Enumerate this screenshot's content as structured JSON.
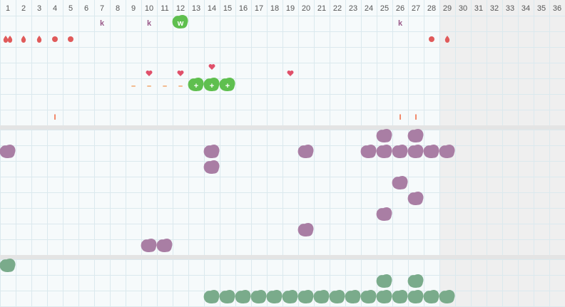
{
  "days": [
    1,
    2,
    3,
    4,
    5,
    6,
    7,
    8,
    9,
    10,
    11,
    12,
    13,
    14,
    15,
    16,
    17,
    18,
    19,
    20,
    21,
    22,
    23,
    24,
    25,
    26,
    27,
    28,
    29,
    30,
    31,
    32,
    33,
    34,
    35,
    36
  ],
  "shaded_from_day": 29,
  "top": {
    "k_marks": {
      "label": "k",
      "days": [
        7,
        10,
        26
      ]
    },
    "w_marks": {
      "label": "w",
      "days": [
        12
      ]
    },
    "double_drops": [
      1
    ],
    "drops": [
      2,
      3,
      29
    ],
    "dots": [
      4,
      5,
      28
    ],
    "hearts_high": [
      14
    ],
    "hearts": [
      10,
      12,
      19
    ],
    "dash_marks": {
      "label": "–",
      "days": [
        9,
        10,
        11,
        12
      ]
    },
    "plus_marks": {
      "label": "+",
      "days": [
        13,
        14,
        15
      ]
    },
    "i_marks": {
      "label": "I",
      "days": [
        4,
        26,
        27
      ]
    }
  },
  "middle": {
    "rows": [
      [
        25,
        27
      ],
      [
        1,
        14,
        20,
        24,
        25,
        26,
        27,
        28,
        29
      ],
      [
        14
      ],
      [
        26
      ],
      [
        27
      ],
      [
        25
      ],
      [
        20
      ],
      [
        10,
        11
      ]
    ]
  },
  "bottom": {
    "rows": [
      [
        1
      ],
      [
        25,
        27
      ],
      [
        14,
        15,
        16,
        17,
        18,
        19,
        20,
        21,
        22,
        23,
        24,
        25,
        26,
        27,
        28,
        29
      ]
    ]
  }
}
